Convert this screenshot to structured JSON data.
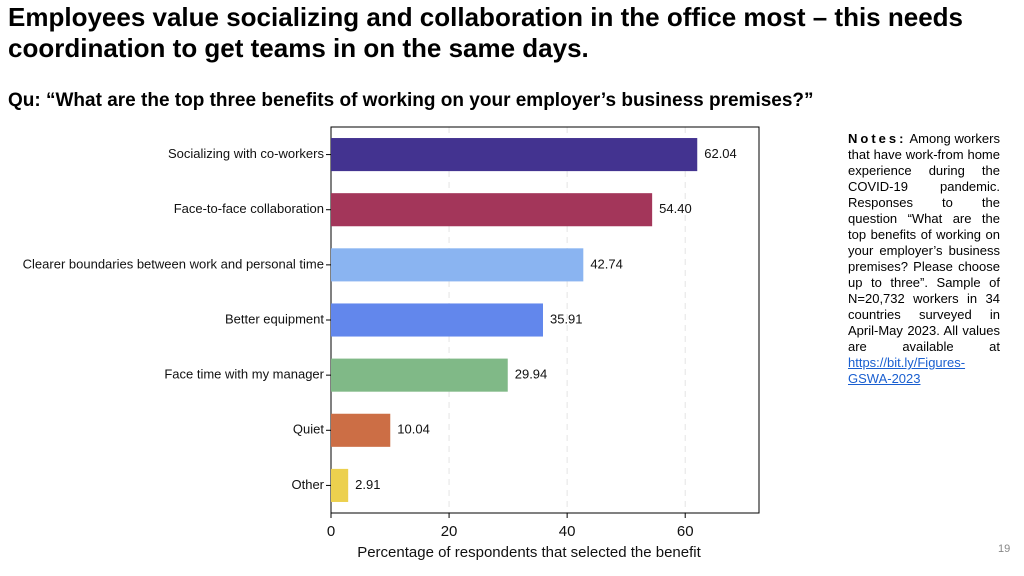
{
  "title": "Employees value socializing and collaboration in the office most – this needs coordination to get teams in on the same days.",
  "question": "Qu: “What are the top three benefits of working on your employer’s business premises?”",
  "notes": {
    "label": "Notes:",
    "text": "Among workers that have work-from home experience during the COVID-19 pandemic. Responses to the question “What are the top benefits of working on your employer’s business premises? Please choose up to three”. Sample of N=20,732 workers in 34 countries surveyed in April-May 2023. All values are available at",
    "link": "https://bit.ly/Figures-GSWA-2023"
  },
  "page_number": "19",
  "chart_data": {
    "type": "hbar",
    "x_label": "Percentage of respondents that selected the benefit",
    "categories": [
      "Socializing with co-workers",
      "Face-to-face collaboration",
      "Clearer boundaries between work and personal time",
      "Better equipment",
      "Face time with my manager",
      "Quiet",
      "Other"
    ],
    "values": [
      62.04,
      54.4,
      42.74,
      35.91,
      29.94,
      10.04,
      2.91
    ],
    "value_labels": [
      "62.04",
      "54.40",
      "42.74",
      "35.91",
      "29.94",
      "10.04",
      "2.91"
    ],
    "colors": [
      "#433390",
      "#a3365a",
      "#8ab4f1",
      "#6287ec",
      "#80b987",
      "#cc6e45",
      "#ecd04e"
    ],
    "xlim": [
      0,
      72.5
    ],
    "xticks": [
      0,
      20,
      40,
      60
    ],
    "grid": true
  }
}
